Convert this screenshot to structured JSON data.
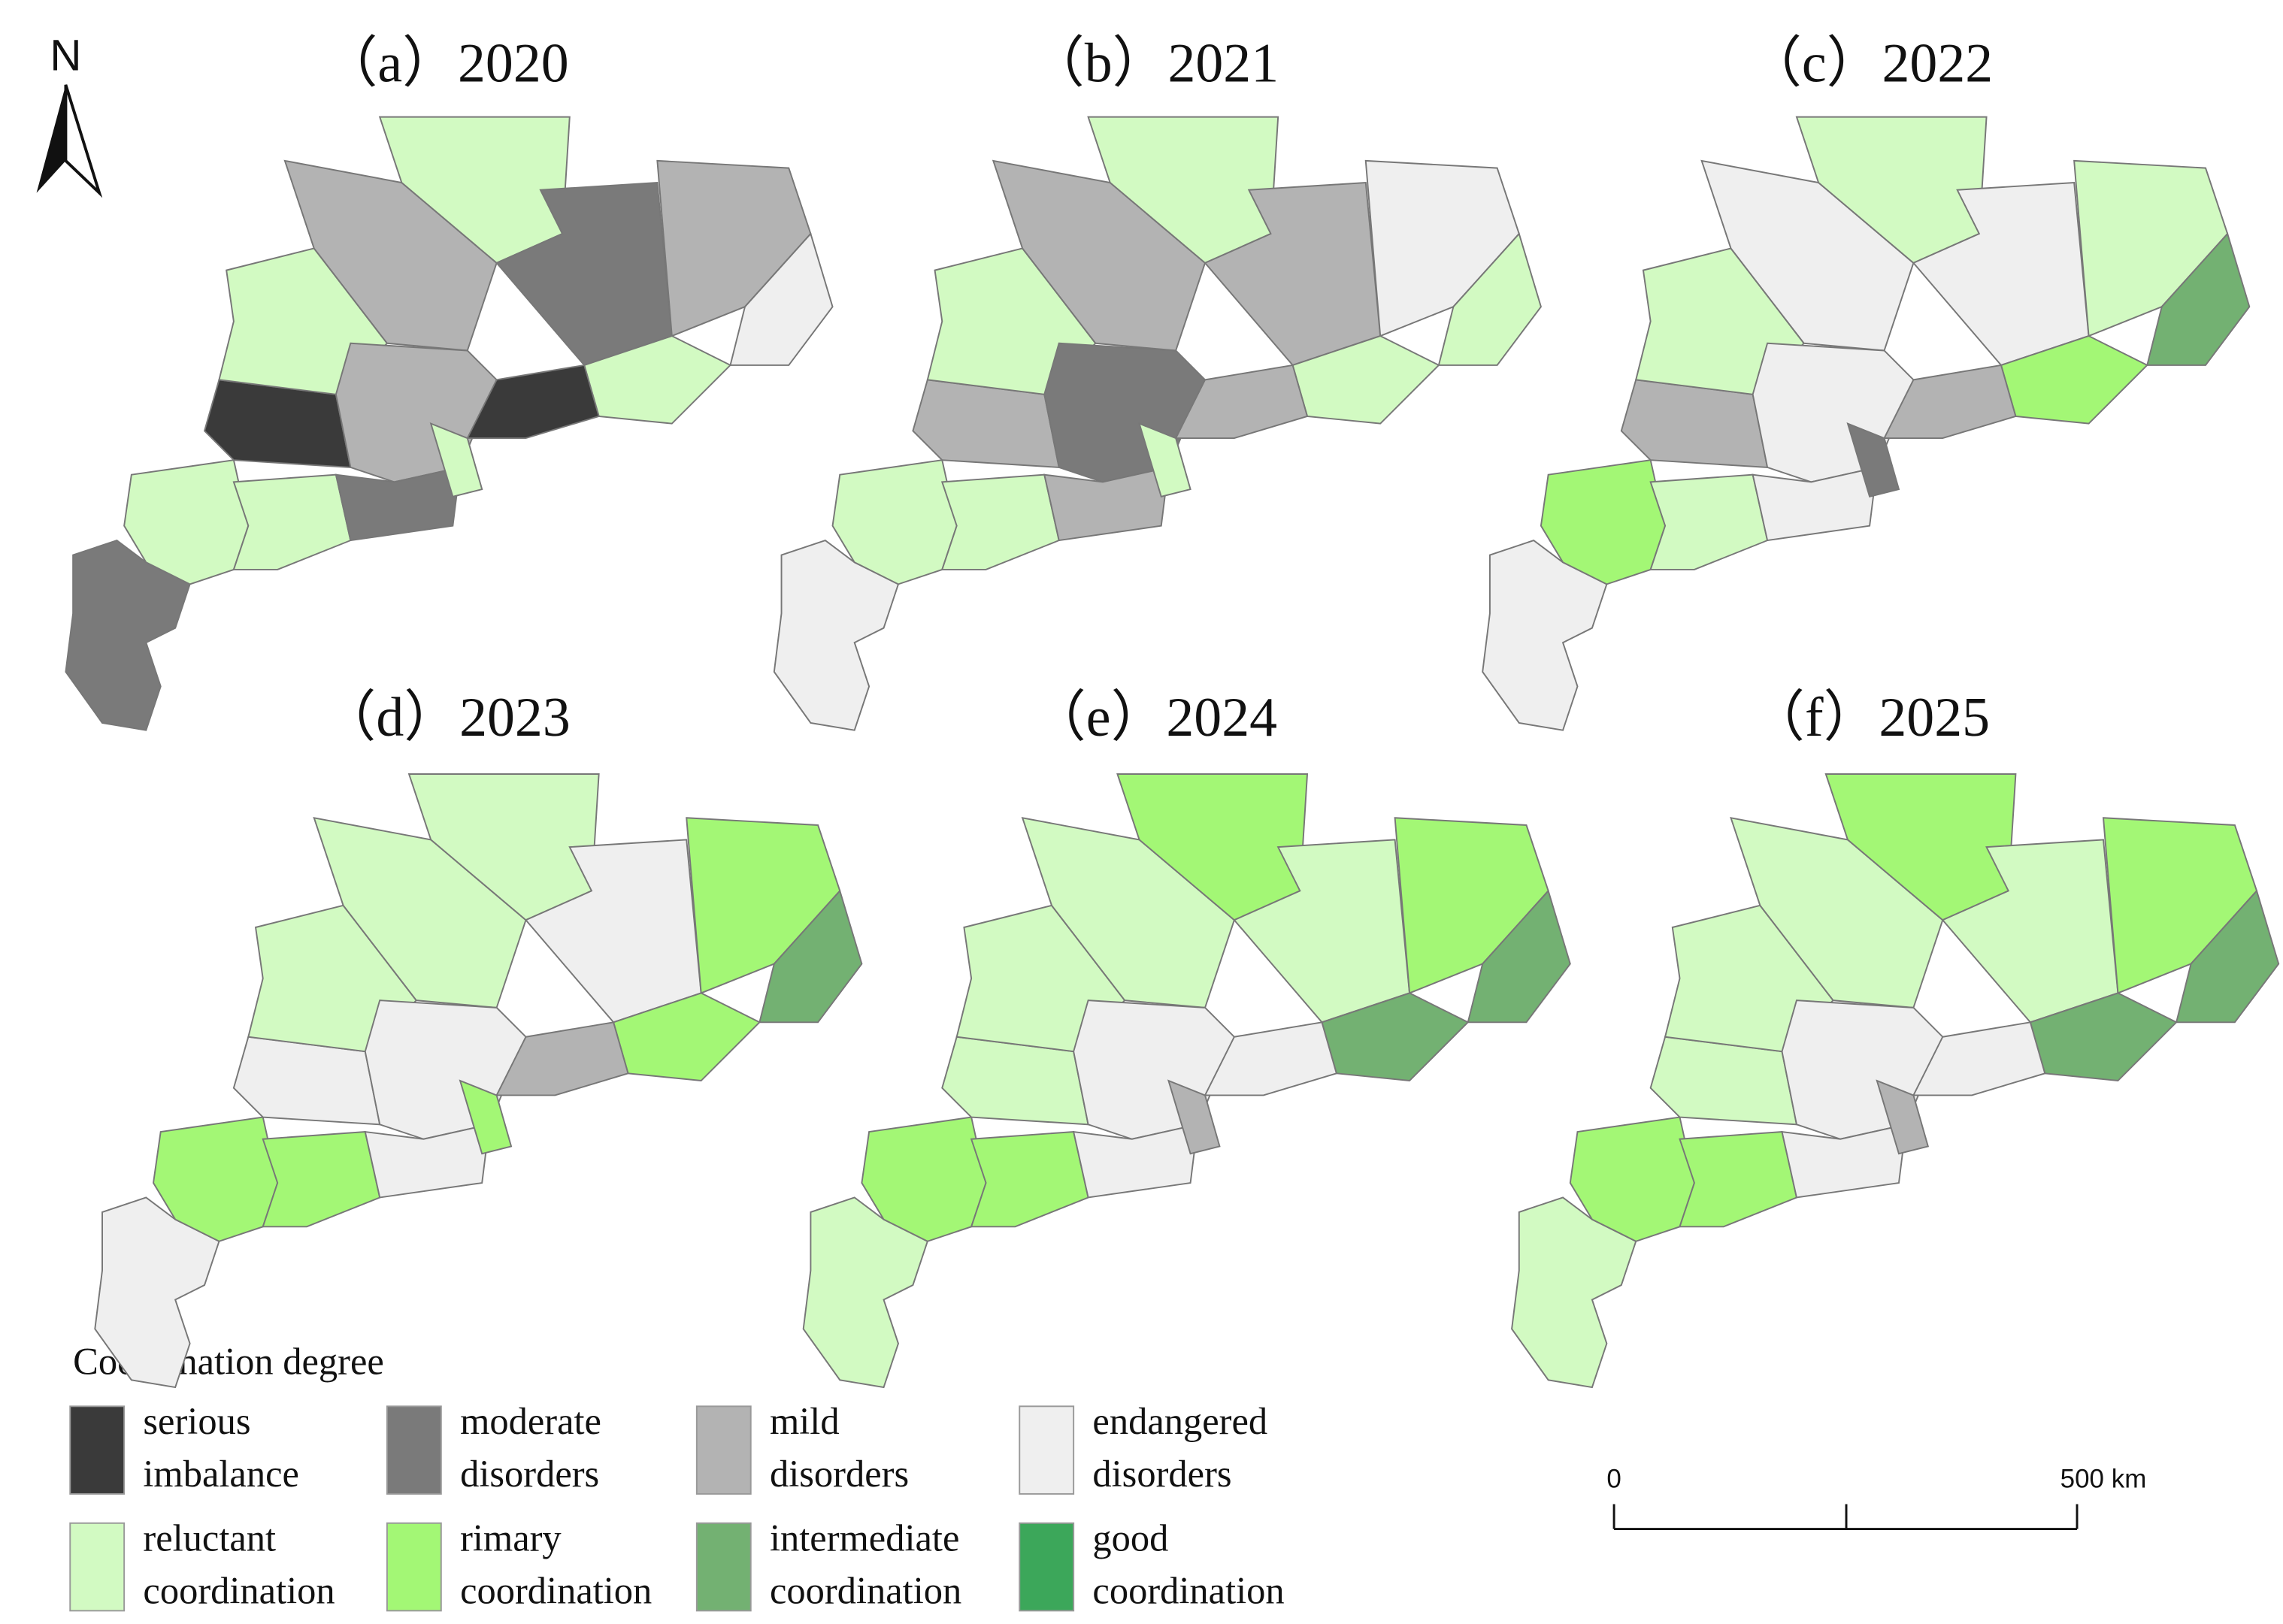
{
  "north": "N",
  "panels": [
    {
      "title": "（a）2020",
      "classes": [
        1,
        4,
        4,
        0,
        4,
        2,
        4,
        1,
        2,
        3,
        4,
        2,
        1,
        0,
        4
      ]
    },
    {
      "title": "（b）2021",
      "classes": [
        3,
        4,
        4,
        2,
        4,
        2,
        4,
        2,
        3,
        4,
        4,
        1,
        2,
        2,
        4
      ]
    },
    {
      "title": "（c）2022",
      "classes": [
        3,
        5,
        4,
        2,
        4,
        3,
        4,
        3,
        4,
        6,
        5,
        3,
        3,
        2,
        1
      ]
    },
    {
      "title": "（d）2023",
      "classes": [
        3,
        5,
        5,
        3,
        4,
        4,
        4,
        3,
        5,
        6,
        5,
        3,
        3,
        2,
        5
      ]
    },
    {
      "title": "（e）2024",
      "classes": [
        4,
        5,
        5,
        4,
        4,
        4,
        5,
        4,
        5,
        6,
        6,
        3,
        3,
        3,
        2
      ]
    },
    {
      "title": "（f）2025",
      "classes": [
        4,
        5,
        5,
        4,
        4,
        4,
        5,
        4,
        5,
        6,
        6,
        3,
        3,
        3,
        2
      ]
    }
  ],
  "legend": {
    "title": "Coordination degree",
    "items": [
      {
        "label": [
          "serious",
          "imbalance"
        ],
        "color": "#3a3a3a"
      },
      {
        "label": [
          "moderate",
          "disorders"
        ],
        "color": "#7a7a7a"
      },
      {
        "label": [
          "mild",
          "disorders"
        ],
        "color": "#b3b3b3"
      },
      {
        "label": [
          "endangered",
          "disorders"
        ],
        "color": "#efefef"
      },
      {
        "label": [
          "reluctant",
          "coordination"
        ],
        "color": "#d2fac2"
      },
      {
        "label": [
          "rimary",
          "coordination"
        ],
        "color": "#a3f775"
      },
      {
        "label": [
          "intermediate",
          "coordination"
        ],
        "color": "#73b172"
      },
      {
        "label": [
          "good",
          "coordination"
        ],
        "color": "#3ca75a"
      }
    ]
  },
  "scale_bar": {
    "labels": [
      "0",
      "500 km"
    ]
  }
}
